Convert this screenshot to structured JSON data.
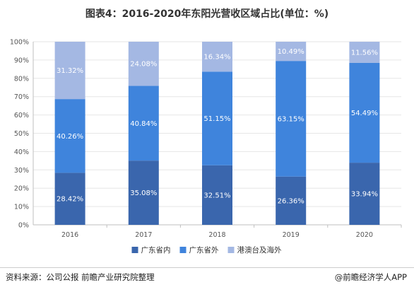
{
  "title": "图表4：2016-2020年东阳光营收区域占比(单位：%)",
  "footer": {
    "source": "资料来源：公司公报 前瞻产业研究院整理",
    "brand": "@前瞻经济学人APP"
  },
  "colors": {
    "axis": "#bfbfbf",
    "grid": "#e6e6e6"
  },
  "chart_data": {
    "type": "bar",
    "stacked": true,
    "categories": [
      "2016",
      "2017",
      "2018",
      "2019",
      "2020"
    ],
    "series": [
      {
        "name": "广东省内",
        "color": "#3a66ad",
        "values": [
          28.42,
          35.08,
          32.51,
          26.36,
          33.94
        ],
        "labels": [
          "28.42%",
          "35.08%",
          "32.51%",
          "26.36%",
          "33.94%"
        ]
      },
      {
        "name": "广东省外",
        "color": "#3f84dc",
        "values": [
          40.26,
          40.84,
          51.15,
          63.15,
          54.49
        ],
        "labels": [
          "40.26%",
          "40.84%",
          "51.15%",
          "63.15%",
          "54.49%"
        ]
      },
      {
        "name": "港澳台及海外",
        "color": "#a4b8e3",
        "values": [
          31.32,
          24.08,
          16.34,
          10.49,
          11.56
        ],
        "labels": [
          "31.32%",
          "24.08%",
          "16.34%",
          "10.49%",
          "11.56%"
        ]
      }
    ],
    "ylim": [
      0,
      100
    ],
    "yticks": [
      "0%",
      "10%",
      "20%",
      "30%",
      "40%",
      "50%",
      "60%",
      "70%",
      "80%",
      "90%",
      "100%"
    ],
    "legend_position": "bottom"
  }
}
